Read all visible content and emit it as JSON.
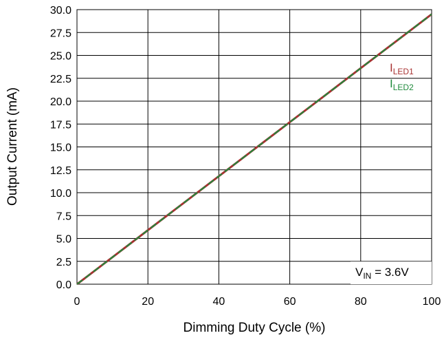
{
  "chart_data": {
    "type": "line",
    "title": "",
    "xlabel": "Dimming Duty Cycle (%)",
    "ylabel": "Output Current (mA)",
    "xlim": [
      0,
      100
    ],
    "ylim": [
      0,
      30
    ],
    "xticks": [
      "0",
      "20",
      "40",
      "60",
      "80",
      "100"
    ],
    "yticks": [
      "0.0",
      "2.5",
      "5.0",
      "7.5",
      "10.0",
      "12.5",
      "15.0",
      "17.5",
      "20.0",
      "22.5",
      "25.0",
      "27.5",
      "30.0"
    ],
    "grid": true,
    "x": [
      0,
      10,
      20,
      30,
      40,
      50,
      60,
      70,
      80,
      90,
      100
    ],
    "series": [
      {
        "name": "I",
        "subscript": "LED1",
        "color": "#a83232",
        "values": [
          0,
          2.95,
          5.9,
          8.85,
          11.8,
          14.75,
          17.7,
          20.65,
          23.6,
          26.55,
          29.5
        ]
      },
      {
        "name": "I",
        "subscript": "LED2",
        "color": "#1f8a3c",
        "values": [
          0,
          2.95,
          5.9,
          8.85,
          11.8,
          14.75,
          17.7,
          20.65,
          23.6,
          26.55,
          29.5
        ]
      }
    ],
    "annotation": {
      "main": "V",
      "subscript": "IN",
      "suffix": " = 3.6V"
    }
  }
}
